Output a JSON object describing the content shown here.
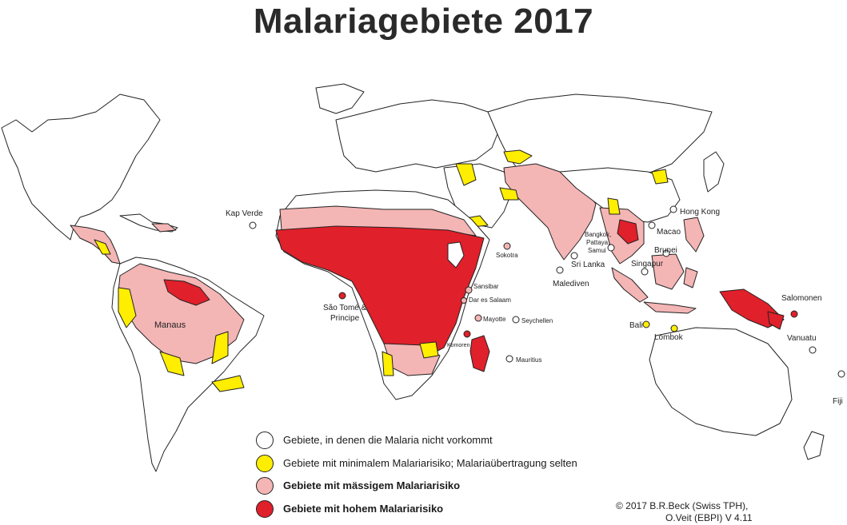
{
  "title": "Malariagebiete 2017",
  "colors": {
    "none": "#ffffff",
    "minimal": "#ffee00",
    "moderate": "#f4b5b5",
    "high": "#e0202a",
    "outline": "#222222"
  },
  "legend": [
    {
      "level": "none",
      "text": "Gebiete, in denen die Malaria nicht vorkommt",
      "bold": false
    },
    {
      "level": "minimal",
      "text": "Gebiete mit minimalem Malariarisiko; Malariaübertragung selten",
      "bold": false
    },
    {
      "level": "moderate",
      "text": "Gebiete mit mässigem Malariarisiko",
      "bold": true
    },
    {
      "level": "high",
      "text": "Gebiete mit hohem Malariarisiko",
      "bold": true
    }
  ],
  "places": {
    "kap_verde": "Kap Verde",
    "manaus": "Manaus",
    "sao_tome": "São Tomé &",
    "principe": "Principe",
    "sokotra": "Sokotra",
    "sansibar": "Sansibar",
    "dar_es_salaam": "Dar es Salaam",
    "mayotte": "Mayotte",
    "seychellen": "Seychellen",
    "komoren": "Komoren",
    "mauritius": "Mauritius",
    "malediven": "Malediven",
    "sri_lanka": "Sri Lanka",
    "bangkok": "Bangkok,",
    "pattaya": "Pattaya,",
    "samui": "Samui",
    "hong_kong": "Hong Kong",
    "macao": "Macao",
    "brunei": "Brunei",
    "singapur": "Singapur",
    "bali": "Bali",
    "lombok": "Lombok",
    "salomonen": "Salomonen",
    "vanuatu": "Vanuatu",
    "fiji": "Fiji"
  },
  "credit": {
    "line1": "© 2017    B.R.Beck (Swiss TPH),",
    "line2": "O.Veit (EBPI) V 4.11"
  }
}
